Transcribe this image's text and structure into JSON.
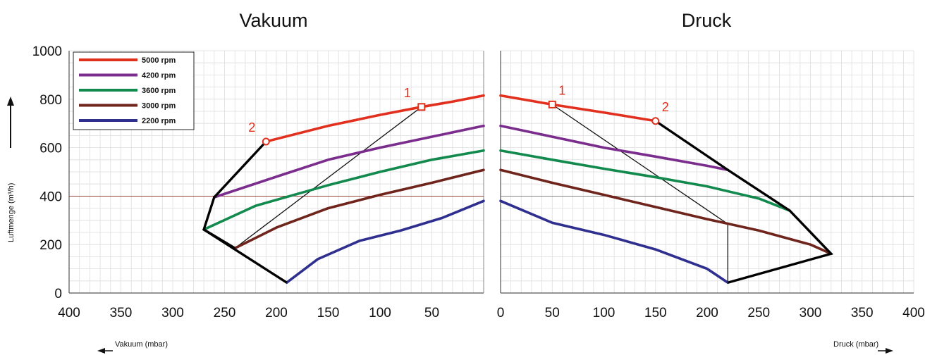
{
  "chart_data": {
    "type": "line",
    "titles": {
      "left": "Vakuum",
      "right": "Druck"
    },
    "ylabel": "Luftmenge (m³/h)",
    "ylim": [
      0,
      1000
    ],
    "yticks": [
      "0",
      "200",
      "400",
      "600",
      "800",
      "1000"
    ],
    "grid": true,
    "legend": "top-left",
    "panels": [
      {
        "key": "vakuum",
        "title": "Vakuum",
        "xlabel": "Vakuum (mbar)",
        "xlim": [
          400,
          0
        ],
        "xticks": [
          "400",
          "350",
          "300",
          "250",
          "200",
          "150",
          "100",
          "50"
        ],
        "series": [
          {
            "name": "5000 rpm",
            "color": "#e2301f",
            "x": [
              210,
              150,
              100,
              60,
              30,
              0
            ],
            "y": [
              625,
              690,
              735,
              768,
              790,
              815
            ]
          },
          {
            "name": "4200 rpm",
            "color": "#7b2d8e",
            "x": [
              260,
              200,
              150,
              100,
              50,
              0
            ],
            "y": [
              395,
              480,
              550,
              600,
              645,
              690
            ]
          },
          {
            "name": "3600 rpm",
            "color": "#138a4d",
            "x": [
              270,
              220,
              150,
              100,
              50,
              0
            ],
            "y": [
              262,
              360,
              445,
              500,
              550,
              588
            ]
          },
          {
            "name": "3000 rpm",
            "color": "#6f241c",
            "x": [
              240,
              200,
              150,
              100,
              50,
              0
            ],
            "y": [
              185,
              270,
              350,
              405,
              455,
              508
            ]
          },
          {
            "name": "2200 rpm",
            "color": "#2f2f8f",
            "x": [
              190,
              160,
              120,
              80,
              40,
              0
            ],
            "y": [
              43,
              140,
              215,
              258,
              310,
              380
            ]
          }
        ],
        "envelope": [
          {
            "x": [
              210,
              260,
              270,
              190
            ],
            "y": [
              625,
              395,
              262,
              43
            ]
          },
          {
            "x": [
              270,
              240
            ],
            "y": [
              262,
              185
            ]
          }
        ],
        "thin_lines": [
          {
            "x": [
              60,
              240
            ],
            "y": [
              768,
              185
            ]
          }
        ],
        "hline_y": 400,
        "markers": [
          {
            "label": "1",
            "shape": "square",
            "x": 60,
            "y": 768
          },
          {
            "label": "2",
            "shape": "circle",
            "x": 210,
            "y": 625
          }
        ]
      },
      {
        "key": "druck",
        "title": "Druck",
        "xlabel": "Druck (mbar)",
        "xlim": [
          0,
          400
        ],
        "xticks": [
          "0",
          "50",
          "100",
          "150",
          "200",
          "250",
          "300",
          "350",
          "400"
        ],
        "series": [
          {
            "name": "5000 rpm",
            "color": "#e2301f",
            "x": [
              0,
              50,
              100,
              150
            ],
            "y": [
              815,
              778,
              745,
              710
            ]
          },
          {
            "name": "4200 rpm",
            "color": "#7b2d8e",
            "x": [
              0,
              50,
              100,
              150,
              200,
              220
            ],
            "y": [
              690,
              645,
              600,
              563,
              525,
              508
            ]
          },
          {
            "name": "3600 rpm",
            "color": "#138a4d",
            "x": [
              0,
              50,
              100,
              150,
              200,
              250,
              280
            ],
            "y": [
              588,
              550,
              513,
              478,
              440,
              390,
              340
            ]
          },
          {
            "name": "3000 rpm",
            "color": "#6f241c",
            "x": [
              0,
              50,
              100,
              150,
              200,
              250,
              300,
              320
            ],
            "y": [
              508,
              455,
              405,
              355,
              305,
              258,
              200,
              162
            ]
          },
          {
            "name": "2200 rpm",
            "color": "#2f2f8f",
            "x": [
              0,
              50,
              100,
              150,
              200,
              220
            ],
            "y": [
              380,
              290,
              240,
              180,
              100,
              43
            ]
          }
        ],
        "envelope": [
          {
            "x": [
              150,
              220,
              280,
              320,
              220
            ],
            "y": [
              710,
              508,
              340,
              162,
              43
            ]
          }
        ],
        "thin_lines": [
          {
            "x": [
              50,
              220,
              220
            ],
            "y": [
              778,
              285,
              43
            ]
          }
        ],
        "hline_y": 400,
        "markers": [
          {
            "label": "1",
            "shape": "square",
            "x": 50,
            "y": 778
          },
          {
            "label": "2",
            "shape": "circle",
            "x": 150,
            "y": 710
          }
        ]
      }
    ]
  }
}
